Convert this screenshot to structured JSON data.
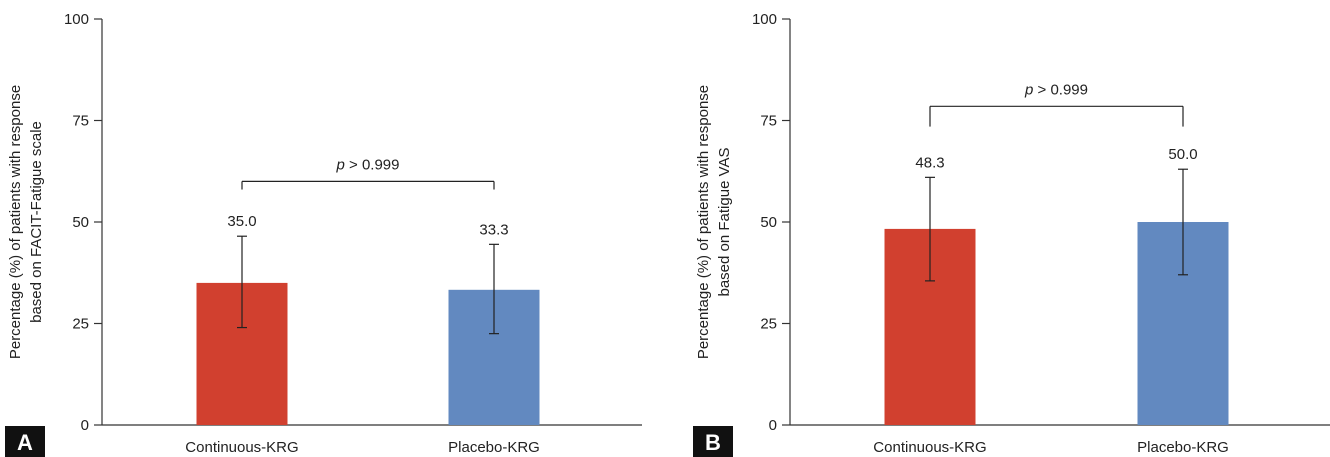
{
  "chart_data": [
    {
      "type": "bar",
      "panel_label": "A",
      "categories": [
        "Continuous-KRG",
        "Placebo-KRG"
      ],
      "values": [
        35.0,
        33.3
      ],
      "value_labels": [
        "35.0",
        "33.3"
      ],
      "error_bars": [
        {
          "low": 24.0,
          "high": 46.5
        },
        {
          "low": 22.5,
          "high": 44.5
        }
      ],
      "colors": [
        "#d1402f",
        "#6289c0"
      ],
      "ylabel_lines": [
        "Percentage (%) of patients with response",
        "based on FACIT-Fatigue scale"
      ],
      "yticks": [
        0,
        25,
        50,
        75,
        100
      ],
      "ytick_labels": [
        "0",
        "25",
        "50",
        "75",
        "100"
      ],
      "ylim": [
        0,
        100
      ],
      "significance": {
        "p_symbol": "p",
        "text": " > 0.999",
        "bracket_y": 60,
        "tick_bottom": 58
      }
    },
    {
      "type": "bar",
      "panel_label": "B",
      "categories": [
        "Continuous-KRG",
        "Placebo-KRG"
      ],
      "values": [
        48.3,
        50.0
      ],
      "value_labels": [
        "48.3",
        "50.0"
      ],
      "error_bars": [
        {
          "low": 35.5,
          "high": 61.0
        },
        {
          "low": 37.0,
          "high": 63.0
        }
      ],
      "colors": [
        "#d1402f",
        "#6289c0"
      ],
      "ylabel_lines": [
        "Percentage (%) of patients with response",
        "based on Fatigue VAS"
      ],
      "yticks": [
        0,
        25,
        50,
        75,
        100
      ],
      "ytick_labels": [
        "0",
        "25",
        "50",
        "75",
        "100"
      ],
      "ylim": [
        0,
        100
      ],
      "significance": {
        "p_symbol": "p",
        "text": " > 0.999",
        "bracket_y": 78.5,
        "tick_bottom": 73.5
      }
    }
  ]
}
